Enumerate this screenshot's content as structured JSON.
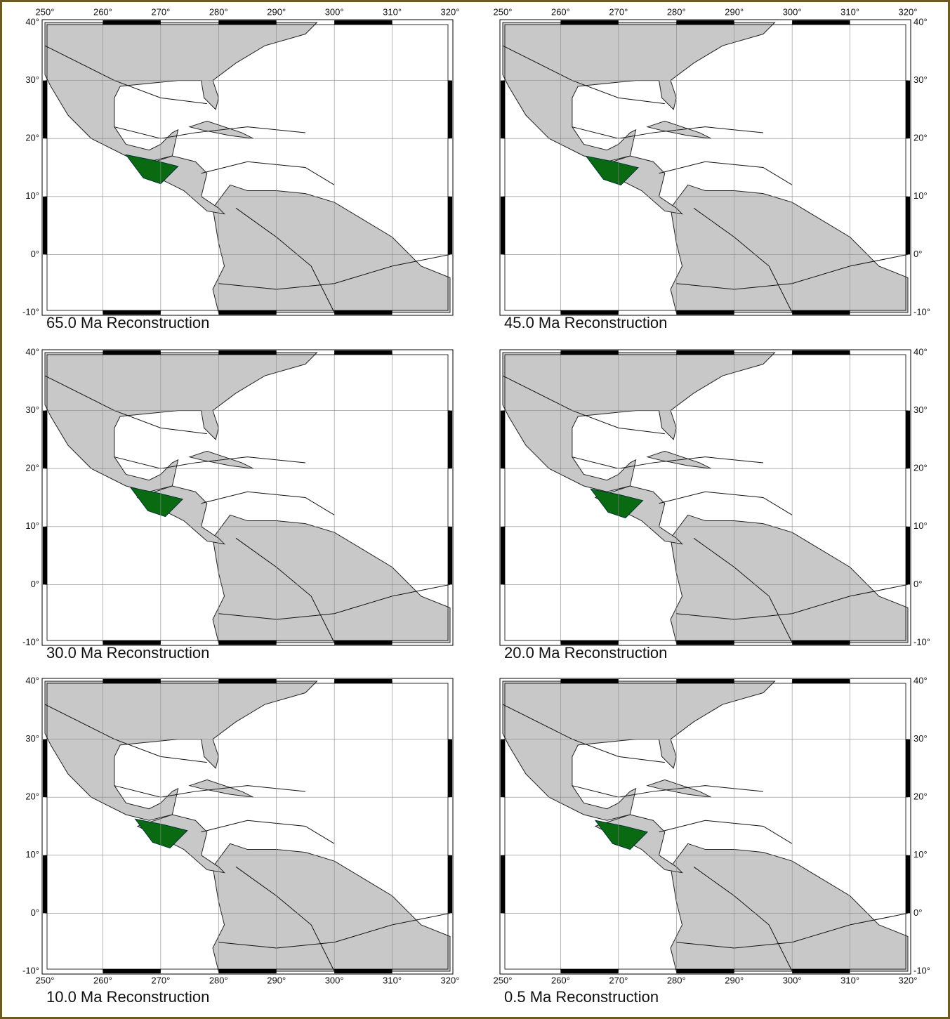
{
  "x_ticks": [
    "250°",
    "260°",
    "270°",
    "280°",
    "290°",
    "300°",
    "310°",
    "320°"
  ],
  "y_ticks": [
    "40°",
    "30°",
    "20°",
    "10°",
    "0°",
    "-10°"
  ],
  "panels": [
    {
      "caption": "65.0 Ma Reconstruction"
    },
    {
      "caption": "45.0 Ma Reconstruction"
    },
    {
      "caption": "30.0 Ma Reconstruction"
    },
    {
      "caption": "20.0 Ma Reconstruction"
    },
    {
      "caption": "10.0 Ma Reconstruction"
    },
    {
      "caption": "0.5 Ma Reconstruction"
    }
  ]
}
